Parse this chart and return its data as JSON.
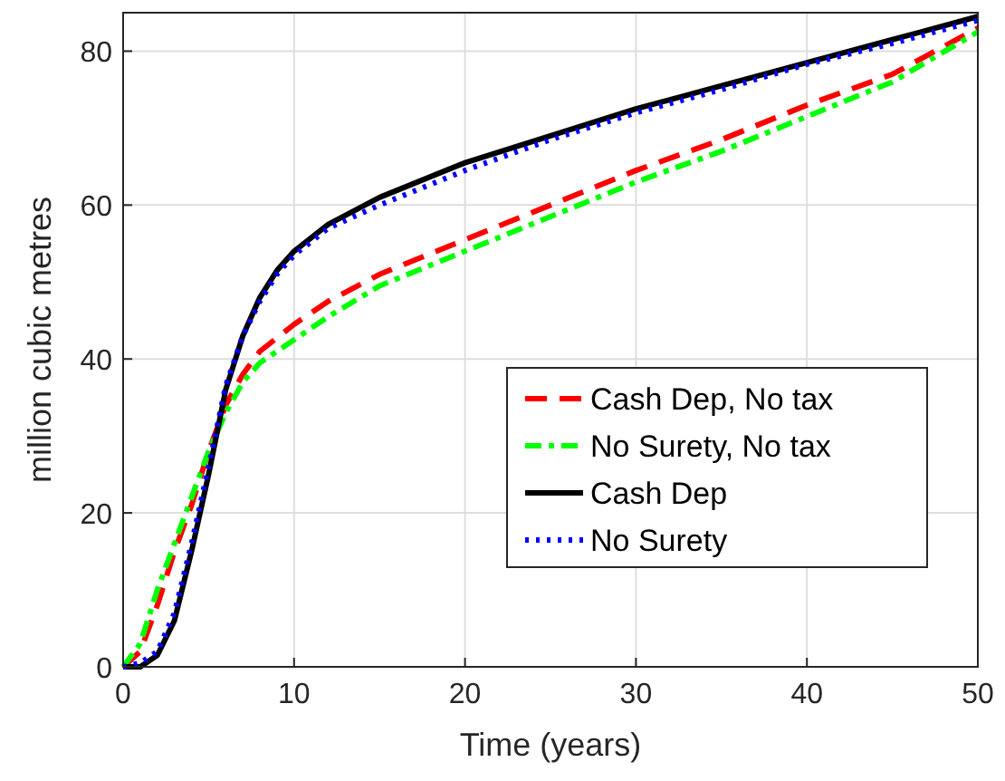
{
  "chart_data": {
    "type": "line",
    "xlabel": "Time (years)",
    "ylabel": "million cubic metres",
    "xlim": [
      0,
      50
    ],
    "ylim": [
      0,
      85
    ],
    "xticks": [
      0,
      10,
      20,
      30,
      40,
      50
    ],
    "yticks": [
      0,
      20,
      40,
      60,
      80
    ],
    "grid": true,
    "legend": "right",
    "series": [
      {
        "name": "Cash Dep, No tax",
        "color": "#ff0000",
        "line_style": "dashed",
        "x": [
          0,
          1,
          2,
          3,
          4,
          5,
          6,
          7,
          8,
          10,
          12,
          15,
          20,
          25,
          30,
          35,
          40,
          45,
          50
        ],
        "values": [
          0,
          2,
          8,
          15,
          21,
          28,
          34,
          38,
          41,
          44.5,
          47.5,
          51,
          55.5,
          60,
          64.5,
          68.5,
          73,
          77,
          83
        ]
      },
      {
        "name": "No Surety, No tax",
        "color": "#00ff00",
        "line_style": "dashdot",
        "x": [
          0,
          1,
          2,
          3,
          4,
          5,
          6,
          7,
          8,
          10,
          12,
          15,
          20,
          25,
          30,
          35,
          40,
          45,
          50
        ],
        "values": [
          0,
          3,
          10,
          16,
          22,
          28,
          33,
          37,
          39.5,
          42.5,
          45.5,
          49.5,
          54,
          58.5,
          63,
          67,
          71.5,
          76,
          82.5
        ]
      },
      {
        "name": "Cash Dep",
        "color": "#000000",
        "line_style": "solid",
        "x": [
          0,
          1,
          2,
          3,
          4,
          5,
          6,
          7,
          8,
          9,
          10,
          12,
          15,
          20,
          25,
          30,
          35,
          40,
          45,
          50
        ],
        "values": [
          0,
          0,
          1.5,
          6,
          15,
          25,
          36,
          43,
          48,
          51.5,
          54,
          57.5,
          61,
          65.5,
          69,
          72.5,
          75.5,
          78.5,
          81.5,
          84.5
        ]
      },
      {
        "name": "No Surety",
        "color": "#0000ff",
        "line_style": "dotted",
        "x": [
          0,
          1,
          2,
          3,
          4,
          5,
          6,
          7,
          8,
          9,
          10,
          12,
          15,
          20,
          25,
          30,
          35,
          40,
          45,
          50
        ],
        "values": [
          0,
          0.5,
          2,
          7,
          16,
          26,
          36.5,
          43,
          47.5,
          51,
          53.5,
          57,
          60,
          64.5,
          68.5,
          72,
          75,
          78.3,
          81,
          84
        ]
      }
    ]
  }
}
